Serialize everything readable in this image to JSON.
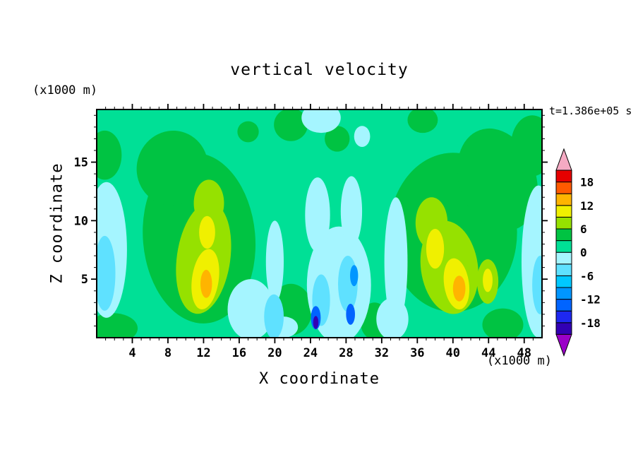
{
  "chart_data": {
    "type": "heatmap",
    "subtype": "filled-contour",
    "title": "vertical velocity",
    "xlabel": "X coordinate",
    "ylabel": "Z coordinate",
    "x_units": "(x1000 m)",
    "y_units": "(x1000 m)",
    "annotation": "t=1.386e+05 s",
    "x_range": [
      0,
      50
    ],
    "y_range": [
      0,
      19.5
    ],
    "x_ticks": [
      4,
      8,
      12,
      16,
      20,
      24,
      28,
      32,
      36,
      40,
      44,
      48
    ],
    "y_ticks": [
      5,
      10,
      15
    ],
    "x_minor_step": 1,
    "y_minor_step": 1,
    "x_major_step": 4,
    "y_major_step": 5,
    "grid": false,
    "colorbar": {
      "position": "right",
      "boundaries": [
        -21,
        -18,
        -15,
        -12,
        -9,
        -6,
        -3,
        0,
        3,
        6,
        9,
        12,
        15,
        18,
        21
      ],
      "tick_labels": [
        "18",
        "12",
        "6",
        "0",
        "-6",
        "-12",
        "-18"
      ],
      "tick_values": [
        18,
        12,
        6,
        0,
        -6,
        -12,
        -18
      ],
      "band_colors": [
        "#3200b4",
        "#1e28f0",
        "#0064ff",
        "#0096ff",
        "#00c8ff",
        "#5fe1ff",
        "#a5f5ff",
        "#00e096",
        "#00c342",
        "#96e100",
        "#f0f000",
        "#ffb400",
        "#ff5a00",
        "#e60000"
      ],
      "under_color": "#9b00c8",
      "over_color": "#f5aac3"
    },
    "background_band": 7,
    "features": [
      {
        "x": 11.5,
        "z": 8.5,
        "rx": 6.3,
        "rz": 7.3,
        "rot": -5,
        "band": 8
      },
      {
        "x": 8.5,
        "z": 14.5,
        "rx": 4.0,
        "rz": 3.2,
        "rot": 15,
        "band": 8
      },
      {
        "x": 40.0,
        "z": 9.0,
        "rx": 7.2,
        "rz": 6.8,
        "rot": 0,
        "band": 8
      },
      {
        "x": 45.0,
        "z": 13.5,
        "rx": 4.3,
        "rz": 4.5,
        "rot": -20,
        "band": 8
      },
      {
        "x": 21.8,
        "z": 2.4,
        "rx": 2.4,
        "rz": 2.2,
        "rot": 0,
        "band": 8
      },
      {
        "x": 31.2,
        "z": 1.4,
        "rx": 1.6,
        "rz": 1.6,
        "rot": 0,
        "band": 8
      },
      {
        "x": 45.6,
        "z": 1.1,
        "rx": 2.3,
        "rz": 1.4,
        "rot": 0,
        "band": 8
      },
      {
        "x": 0.9,
        "z": 15.6,
        "rx": 1.9,
        "rz": 2.1,
        "rot": 0,
        "band": 8
      },
      {
        "x": 1.8,
        "z": 0.8,
        "rx": 2.8,
        "rz": 1.3,
        "rot": 0,
        "band": 8
      },
      {
        "x": 21.8,
        "z": 18.2,
        "rx": 1.9,
        "rz": 1.4,
        "rot": 0,
        "band": 8
      },
      {
        "x": 27.0,
        "z": 17.0,
        "rx": 1.4,
        "rz": 1.1,
        "rot": 0,
        "band": 8
      },
      {
        "x": 48.9,
        "z": 16.4,
        "rx": 2.4,
        "rz": 2.6,
        "rot": 0,
        "band": 8
      },
      {
        "x": 36.6,
        "z": 18.6,
        "rx": 1.7,
        "rz": 1.1,
        "rot": 0,
        "band": 8
      },
      {
        "x": 17.0,
        "z": 17.6,
        "rx": 1.2,
        "rz": 0.9,
        "rot": 0,
        "band": 8
      },
      {
        "x": 1.1,
        "z": 7.5,
        "rx": 2.3,
        "rz": 5.8,
        "rot": 0,
        "band": 6
      },
      {
        "x": 17.3,
        "z": 2.4,
        "rx": 2.6,
        "rz": 2.6,
        "rot": 0,
        "band": 6
      },
      {
        "x": 20.0,
        "z": 6.5,
        "rx": 1.0,
        "rz": 3.5,
        "rot": 0,
        "band": 6
      },
      {
        "x": 27.2,
        "z": 4.5,
        "rx": 3.6,
        "rz": 5.0,
        "rot": 0,
        "band": 6
      },
      {
        "x": 24.8,
        "z": 10.5,
        "rx": 1.4,
        "rz": 3.2,
        "rot": 0,
        "band": 6
      },
      {
        "x": 28.6,
        "z": 10.8,
        "rx": 1.2,
        "rz": 3.0,
        "rot": 0,
        "band": 6
      },
      {
        "x": 33.6,
        "z": 6.5,
        "rx": 1.3,
        "rz": 5.5,
        "rot": 0,
        "band": 6
      },
      {
        "x": 33.2,
        "z": 1.6,
        "rx": 1.8,
        "rz": 1.8,
        "rot": 0,
        "band": 6
      },
      {
        "x": 49.6,
        "z": 6.5,
        "rx": 1.9,
        "rz": 6.5,
        "rot": 0,
        "band": 6
      },
      {
        "x": 25.2,
        "z": 18.8,
        "rx": 2.2,
        "rz": 1.3,
        "rot": 0,
        "band": 6
      },
      {
        "x": 29.8,
        "z": 17.2,
        "rx": 0.9,
        "rz": 0.9,
        "rot": 0,
        "band": 6
      },
      {
        "x": 21.0,
        "z": 0.9,
        "rx": 1.6,
        "rz": 0.9,
        "rot": 0,
        "band": 6
      },
      {
        "x": 0.9,
        "z": 5.5,
        "rx": 1.2,
        "rz": 3.2,
        "rot": 0,
        "band": 5
      },
      {
        "x": 19.9,
        "z": 1.8,
        "rx": 1.1,
        "rz": 1.9,
        "rot": 0,
        "band": 5
      },
      {
        "x": 25.2,
        "z": 3.2,
        "rx": 1.0,
        "rz": 2.2,
        "rot": 0,
        "band": 5
      },
      {
        "x": 28.2,
        "z": 4.6,
        "rx": 1.1,
        "rz": 2.4,
        "rot": 0,
        "band": 5
      },
      {
        "x": 49.8,
        "z": 4.5,
        "rx": 0.9,
        "rz": 2.5,
        "rot": 0,
        "band": 5
      },
      {
        "x": 24.6,
        "z": 1.7,
        "rx": 0.55,
        "rz": 1.0,
        "rot": 0,
        "band": 2
      },
      {
        "x": 28.5,
        "z": 2.0,
        "rx": 0.5,
        "rz": 0.9,
        "rot": 0,
        "band": 2
      },
      {
        "x": 28.9,
        "z": 5.3,
        "rx": 0.45,
        "rz": 0.9,
        "rot": 0,
        "band": 3
      },
      {
        "x": 24.6,
        "z": 1.3,
        "rx": 0.3,
        "rz": 0.55,
        "rot": 0,
        "band": 0
      },
      {
        "x": 12.0,
        "z": 6.8,
        "rx": 3.0,
        "rz": 4.8,
        "rot": 8,
        "band": 9
      },
      {
        "x": 12.6,
        "z": 11.5,
        "rx": 1.7,
        "rz": 2.0,
        "rot": 0,
        "band": 9
      },
      {
        "x": 39.6,
        "z": 6.0,
        "rx": 3.2,
        "rz": 4.0,
        "rot": -8,
        "band": 9
      },
      {
        "x": 37.6,
        "z": 9.8,
        "rx": 1.8,
        "rz": 2.2,
        "rot": 0,
        "band": 9
      },
      {
        "x": 43.9,
        "z": 4.8,
        "rx": 1.2,
        "rz": 1.9,
        "rot": 0,
        "band": 9
      },
      {
        "x": 12.2,
        "z": 5.0,
        "rx": 1.5,
        "rz": 2.6,
        "rot": 8,
        "band": 10
      },
      {
        "x": 12.4,
        "z": 9.0,
        "rx": 0.9,
        "rz": 1.4,
        "rot": 0,
        "band": 10
      },
      {
        "x": 40.4,
        "z": 4.6,
        "rx": 1.4,
        "rz": 2.2,
        "rot": -8,
        "band": 10
      },
      {
        "x": 38.0,
        "z": 7.6,
        "rx": 1.0,
        "rz": 1.7,
        "rot": 0,
        "band": 10
      },
      {
        "x": 43.9,
        "z": 4.9,
        "rx": 0.55,
        "rz": 1.0,
        "rot": 0,
        "band": 10
      },
      {
        "x": 12.3,
        "z": 4.6,
        "rx": 0.65,
        "rz": 1.2,
        "rot": 0,
        "band": 11
      },
      {
        "x": 40.7,
        "z": 4.2,
        "rx": 0.7,
        "rz": 1.1,
        "rot": 0,
        "band": 11
      }
    ]
  }
}
